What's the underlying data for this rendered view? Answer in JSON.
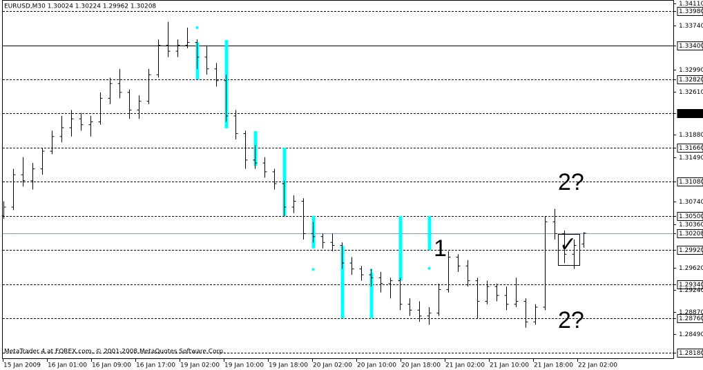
{
  "chart_data": {
    "type": "ohlc",
    "title": "EURUSD,M30  1.30024 1.30224 1.29962 1.30208",
    "footer": "MetaTrader 4 at FOREX.com, © 2001-2008 MetaQuotes Software Corp.",
    "bar_color": "#000000",
    "signal_color": "#00ffff",
    "level_color": "#000000",
    "current_color": "#7f9db9",
    "ylim": [
      1.2807,
      1.3417
    ],
    "yticks": [
      {
        "value": 1.3411,
        "label": "1.34110"
      },
      {
        "value": 1.3398,
        "label": "1.33980",
        "level": "dashed"
      },
      {
        "value": 1.3374,
        "label": "1.33740"
      },
      {
        "value": 1.334,
        "label": "1.33400",
        "level": "solid"
      },
      {
        "value": 1.3299,
        "label": "1.32990"
      },
      {
        "value": 1.3282,
        "label": "1.32820",
        "level": "dashed"
      },
      {
        "value": 1.3261,
        "label": "1.32610"
      },
      {
        "value": 1.3225,
        "level": "dashed"
      },
      {
        "value": 1.3188,
        "label": "1.31880"
      },
      {
        "value": 1.3166,
        "label": "1.31660",
        "level": "dashed"
      },
      {
        "value": 1.3149,
        "label": "1.31490"
      },
      {
        "value": 1.3108,
        "label": "1.31080",
        "level": "dashed"
      },
      {
        "value": 1.3074,
        "label": "1.30740"
      },
      {
        "value": 1.305,
        "label": "1.30500",
        "level": "dashed"
      },
      {
        "value": 1.3036,
        "label": "1.30360"
      },
      {
        "value": 1.30208,
        "label": "1.30208",
        "level": "current"
      },
      {
        "value": 1.2992,
        "label": "1.29920",
        "level": "dashed"
      },
      {
        "value": 1.2962,
        "label": "1.29620"
      },
      {
        "value": 1.2934,
        "label": "1.29340",
        "level": "dashed"
      },
      {
        "value": 1.2924,
        "label": "1.29240"
      },
      {
        "value": 1.2887,
        "label": "1.28870"
      },
      {
        "value": 1.2876,
        "label": "1.28760",
        "level": "dashed"
      },
      {
        "value": 1.2849,
        "label": "1.28490"
      },
      {
        "value": 1.2818,
        "label": "1.28180",
        "level": "dashed"
      }
    ],
    "x_labels": [
      "15 Jan 2009",
      "16 Jan 01:00",
      "16 Jan 09:00",
      "16 Jan 17:00",
      "19 Jan 02:00",
      "19 Jan 10:00",
      "19 Jan 18:00",
      "20 Jan 02:00",
      "20 Jan 10:00",
      "20 Jan 18:00",
      "21 Jan 02:00",
      "21 Jan 10:00",
      "21 Jan 18:00",
      "22 Jan 02:00"
    ],
    "bars": [
      [
        1.305,
        1.3075,
        1.3045,
        1.3065
      ],
      [
        1.3065,
        1.313,
        1.306,
        1.312
      ],
      [
        1.312,
        1.315,
        1.31,
        1.311
      ],
      [
        1.311,
        1.314,
        1.3095,
        1.313
      ],
      [
        1.313,
        1.3165,
        1.312,
        1.316
      ],
      [
        1.316,
        1.3195,
        1.3155,
        1.3185
      ],
      [
        1.3185,
        1.322,
        1.3175,
        1.32
      ],
      [
        1.32,
        1.323,
        1.3185,
        1.3215
      ],
      [
        1.3215,
        1.3225,
        1.3195,
        1.3205
      ],
      [
        1.3205,
        1.322,
        1.3185,
        1.321
      ],
      [
        1.321,
        1.326,
        1.3205,
        1.325
      ],
      [
        1.325,
        1.3285,
        1.324,
        1.3275
      ],
      [
        1.3275,
        1.33,
        1.325,
        1.326
      ],
      [
        1.326,
        1.3265,
        1.3215,
        1.323
      ],
      [
        1.323,
        1.3255,
        1.3215,
        1.3245
      ],
      [
        1.3245,
        1.33,
        1.324,
        1.329
      ],
      [
        1.329,
        1.335,
        1.3285,
        1.334
      ],
      [
        1.334,
        1.338,
        1.332,
        1.333
      ],
      [
        1.333,
        1.335,
        1.332,
        1.334
      ],
      [
        1.334,
        1.337,
        1.3335,
        1.3345
      ],
      [
        1.3345,
        1.335,
        1.33,
        1.332
      ],
      [
        1.332,
        1.334,
        1.329,
        1.33
      ],
      [
        1.33,
        1.331,
        1.327,
        1.328
      ],
      [
        1.328,
        1.329,
        1.321,
        1.322
      ],
      [
        1.322,
        1.323,
        1.318,
        1.319
      ],
      [
        1.319,
        1.3195,
        1.313,
        1.3145
      ],
      [
        1.3145,
        1.317,
        1.313,
        1.314
      ],
      [
        1.314,
        1.315,
        1.3115,
        1.3125
      ],
      [
        1.3125,
        1.313,
        1.3095,
        1.3105
      ],
      [
        1.3105,
        1.311,
        1.305,
        1.3065
      ],
      [
        1.3065,
        1.3085,
        1.3055,
        1.3075
      ],
      [
        1.3075,
        1.308,
        1.301,
        1.302
      ],
      [
        1.302,
        1.304,
        1.3005,
        1.3015
      ],
      [
        1.3015,
        1.302,
        1.2995,
        1.3005
      ],
      [
        1.3005,
        1.302,
        1.299,
        1.3
      ],
      [
        1.3,
        1.3005,
        1.296,
        1.297
      ],
      [
        1.297,
        1.298,
        1.295,
        1.296
      ],
      [
        1.296,
        1.2965,
        1.294,
        1.295
      ],
      [
        1.295,
        1.296,
        1.293,
        1.2945
      ],
      [
        1.2945,
        1.2955,
        1.292,
        1.2935
      ],
      [
        1.2935,
        1.2945,
        1.291,
        1.294
      ],
      [
        1.294,
        1.2945,
        1.289,
        1.29
      ],
      [
        1.29,
        1.291,
        1.288,
        1.289
      ],
      [
        1.289,
        1.2905,
        1.287,
        1.288
      ],
      [
        1.288,
        1.2895,
        1.2865,
        1.2885
      ],
      [
        1.2885,
        1.2935,
        1.288,
        1.2925
      ],
      [
        1.2925,
        1.299,
        1.292,
        1.298
      ],
      [
        1.298,
        1.2985,
        1.2955,
        1.2965
      ],
      [
        1.2965,
        1.2975,
        1.293,
        1.294
      ],
      [
        1.294,
        1.2945,
        1.2875,
        1.2905
      ],
      [
        1.2905,
        1.294,
        1.29,
        1.293
      ],
      [
        1.293,
        1.2935,
        1.2905,
        1.2915
      ],
      [
        1.2915,
        1.293,
        1.289,
        1.29
      ],
      [
        1.29,
        1.2945,
        1.2895,
        1.2905
      ],
      [
        1.2905,
        1.291,
        1.286,
        1.287
      ],
      [
        1.287,
        1.29,
        1.2865,
        1.2895
      ],
      [
        1.2895,
        1.305,
        1.289,
        1.304
      ],
      [
        1.304,
        1.3062,
        1.301,
        1.302
      ],
      [
        1.302,
        1.3025,
        1.297,
        1.2985
      ],
      [
        1.2985,
        1.301,
        1.296,
        1.3
      ],
      [
        1.30024,
        1.30224,
        1.29962,
        1.30208
      ]
    ],
    "signals": [
      null,
      null,
      null,
      null,
      null,
      null,
      null,
      null,
      null,
      null,
      null,
      null,
      null,
      null,
      null,
      null,
      null,
      null,
      null,
      null,
      [
        1.3345,
        1.3282
      ],
      null,
      null,
      [
        1.3349,
        1.3199
      ],
      null,
      null,
      [
        1.3194,
        1.3135
      ],
      null,
      null,
      [
        1.3166,
        1.305
      ],
      null,
      null,
      [
        1.305,
        1.2995
      ],
      null,
      null,
      [
        1.2999,
        1.2876
      ],
      null,
      null,
      [
        1.2954,
        1.2876
      ],
      null,
      null,
      [
        1.305,
        1.294
      ],
      null,
      null,
      [
        1.305,
        1.2992
      ],
      null,
      null,
      null,
      null,
      null,
      null,
      null,
      null,
      null,
      null,
      null,
      null,
      null,
      null,
      null,
      null
    ],
    "dots": [
      null,
      null,
      null,
      null,
      null,
      null,
      null,
      null,
      null,
      null,
      null,
      null,
      null,
      null,
      null,
      null,
      null,
      null,
      null,
      null,
      1.337,
      null,
      null,
      null,
      null,
      null,
      null,
      null,
      null,
      null,
      null,
      null,
      1.2959,
      null,
      null,
      null,
      null,
      null,
      1.2958,
      null,
      null,
      null,
      null,
      null,
      1.2961,
      null,
      null,
      null,
      null,
      null,
      null,
      null,
      null,
      null,
      null,
      null,
      null,
      null,
      null,
      null,
      null
    ],
    "annotations": [
      "1",
      "2?",
      "2?",
      "✓"
    ]
  }
}
